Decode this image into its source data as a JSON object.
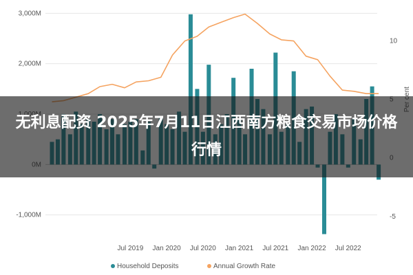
{
  "banner": {
    "title": "无利息配资 2025年7月11日江西南方粮食交易市场价格行情"
  },
  "colors": {
    "deposits": "#2a8c96",
    "growth": "#f5a360",
    "grid": "#e6e6e6",
    "zero_line": "#c8c8c8"
  },
  "chart_data": {
    "type": "bar",
    "y_left": {
      "range": [
        -1400,
        3100
      ],
      "ticks": [
        3000,
        2000,
        1000,
        0,
        -1000
      ],
      "tick_labels": [
        "3,000M",
        "2,000M",
        "1,000M",
        "0M",
        "-1,000M"
      ]
    },
    "y_right": {
      "label": "Per cent",
      "range": [
        -6.6,
        12.8
      ],
      "ticks": [
        10,
        5,
        0,
        -5
      ],
      "tick_labels": [
        "10",
        "5",
        "0",
        "-5"
      ]
    },
    "x_axis": {
      "range": [
        2018.33,
        2022.9
      ],
      "ticks": [
        2019.5,
        2020.0,
        2020.5,
        2021.0,
        2021.5,
        2022.0,
        2022.5
      ],
      "tick_labels": [
        "Jul 2019",
        "Jan 2020",
        "Jul 2020",
        "Jan 2021",
        "Jul 2021",
        "Jan 2022",
        "Jul 2022"
      ]
    },
    "grid": true,
    "legend": "bottom",
    "series": [
      {
        "name": "Household Deposits",
        "type": "bar",
        "axis": "left",
        "x": [
          2018.42,
          2018.5,
          2018.58,
          2018.67,
          2018.75,
          2018.83,
          2018.92,
          2019.0,
          2019.08,
          2019.17,
          2019.25,
          2019.33,
          2019.42,
          2019.5,
          2019.58,
          2019.67,
          2019.75,
          2019.83,
          2019.92,
          2020.0,
          2020.08,
          2020.17,
          2020.25,
          2020.33,
          2020.42,
          2020.5,
          2020.58,
          2020.67,
          2020.75,
          2020.83,
          2020.92,
          2021.0,
          2021.08,
          2021.17,
          2021.25,
          2021.33,
          2021.42,
          2021.5,
          2021.58,
          2021.67,
          2021.75,
          2021.83,
          2021.92,
          2022.0,
          2022.08,
          2022.17,
          2022.25,
          2022.33,
          2022.42,
          2022.5,
          2022.58,
          2022.67,
          2022.75
        ],
        "values": [
          450,
          500,
          1000,
          600,
          1050,
          800,
          900,
          850,
          1000,
          700,
          900,
          600,
          800,
          850,
          900,
          280,
          850,
          -80,
          950,
          800,
          700,
          1050,
          650,
          2980,
          1500,
          650,
          1980,
          600,
          800,
          1000,
          1720,
          900,
          600,
          1900,
          1300,
          1100,
          600,
          2220,
          650,
          800,
          1850,
          450,
          1100,
          1150,
          -60,
          -1380,
          650,
          1000,
          600,
          -60,
          900,
          500,
          1300
        ],
        "tick_marks_extra": {
          "2022.83": 1550,
          "2022.92": -300
        }
      },
      {
        "name": "Annual Growth Rate",
        "type": "line",
        "axis": "right",
        "x": [
          2018.42,
          2018.58,
          2018.75,
          2018.92,
          2019.08,
          2019.25,
          2019.42,
          2019.58,
          2019.75,
          2019.92,
          2020.08,
          2020.25,
          2020.42,
          2020.58,
          2020.75,
          2020.92,
          2021.08,
          2021.25,
          2021.42,
          2021.58,
          2021.75,
          2021.92,
          2022.08,
          2022.25,
          2022.42,
          2022.58,
          2022.75,
          2022.92
        ],
        "values": [
          4.8,
          4.9,
          5.2,
          5.5,
          6.1,
          6.3,
          6.0,
          6.5,
          6.6,
          6.9,
          8.8,
          10.0,
          10.4,
          11.2,
          11.6,
          12.0,
          12.3,
          11.5,
          10.6,
          10.1,
          10.0,
          8.7,
          8.4,
          7.0,
          5.8,
          5.7,
          5.5,
          5.5
        ]
      }
    ]
  }
}
